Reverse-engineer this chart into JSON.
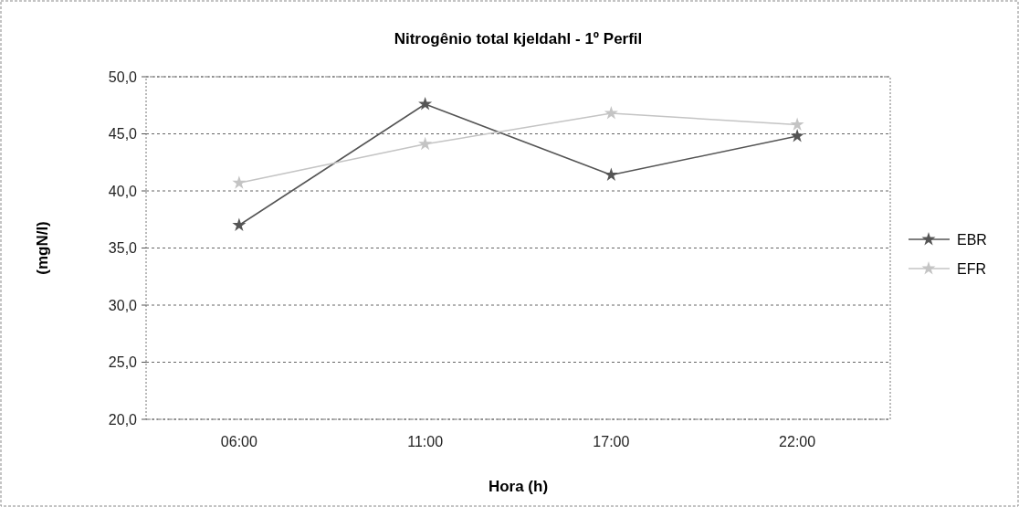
{
  "chart_data": {
    "type": "line",
    "title": "Nitrogênio total kjeldahl - 1º Perfil",
    "xlabel": "Hora (h)",
    "ylabel": "(mgN/l)",
    "categories": [
      "06:00",
      "11:00",
      "17:00",
      "22:00"
    ],
    "series": [
      {
        "name": "EBR",
        "color": "#555555",
        "values": [
          37.0,
          47.6,
          41.4,
          44.8
        ]
      },
      {
        "name": "EFR",
        "color": "#c4c4c4",
        "values": [
          40.7,
          44.1,
          46.8,
          45.8
        ]
      }
    ],
    "ylim": [
      20,
      50
    ],
    "yticks": [
      {
        "value": 20,
        "label": "20,0"
      },
      {
        "value": 25,
        "label": "25,0"
      },
      {
        "value": 30,
        "label": "30,0"
      },
      {
        "value": 35,
        "label": "35,0"
      },
      {
        "value": 40,
        "label": "40,0"
      },
      {
        "value": 45,
        "label": "45,0"
      },
      {
        "value": 50,
        "label": "50,0"
      }
    ],
    "grid": "y",
    "legend": "right",
    "marker": "star",
    "line_style": "solid"
  }
}
